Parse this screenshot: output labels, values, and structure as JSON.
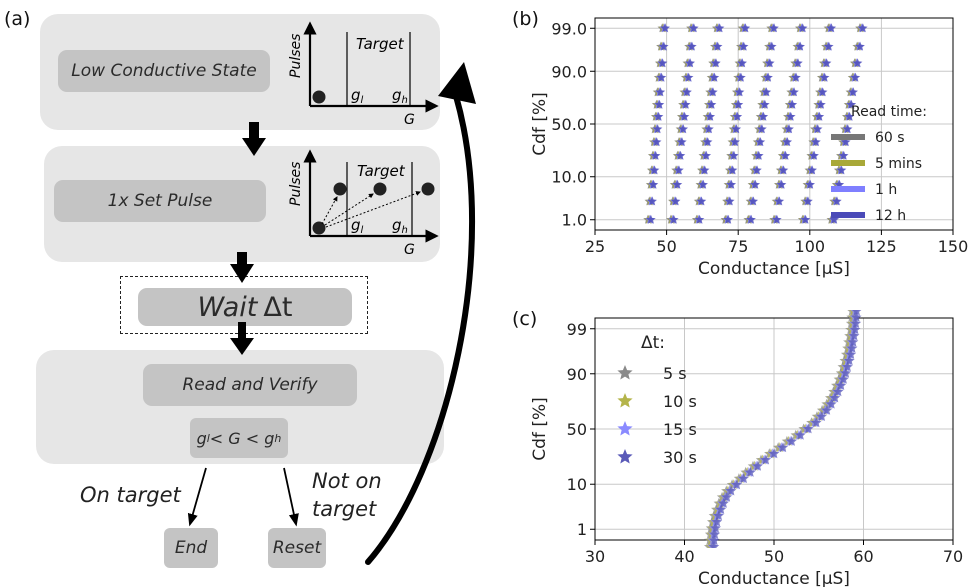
{
  "panel_a": {
    "letter": "(a)",
    "step1": "Low Conductive State",
    "step2": "1x Set Pulse",
    "wait_prefix": "Wait ",
    "wait_var": "Δt",
    "step3": "Read and Verify",
    "condition": "g",
    "condition_lt1": "< G < g",
    "on_target": "On target",
    "not_on_target_1": "Not on",
    "not_on_target_2": "target",
    "end": "End",
    "reset": "Reset",
    "inset": {
      "y_axis": "Pulses",
      "x_axis": "G",
      "target": "Target",
      "g_low": "g",
      "g_low_sub": "l",
      "g_high": "g",
      "g_high_sub": "h"
    }
  },
  "panel_b": {
    "letter": "(b)"
  },
  "panel_c": {
    "letter": "(c)"
  },
  "chart_data": [
    {
      "type": "scatter",
      "panel": "b",
      "xlabel": "Conductance [µS]",
      "ylabel": "Cdf [%]",
      "xlim": [
        25,
        150
      ],
      "x_ticks": [
        "25",
        "50",
        "75",
        "100",
        "125",
        "150"
      ],
      "y_scale": "probit",
      "y_ticks": [
        "1.0",
        "10.0",
        "50.0",
        "90.0",
        "99.0"
      ],
      "y_tick_values": [
        1,
        10,
        50,
        90,
        99
      ],
      "grid": true,
      "legend_title": "Read time:",
      "legend_placement": "right",
      "colors": [
        "#777777",
        "#a8a838",
        "#7f7fff",
        "#4a4ab8"
      ],
      "series": [
        {
          "name": "60 s"
        },
        {
          "name": "5 mins"
        },
        {
          "name": "1 h"
        },
        {
          "name": "12 h"
        }
      ],
      "distributions": [
        {
          "x_low": 44,
          "x_high": 49
        },
        {
          "x_low": 52,
          "x_high": 59
        },
        {
          "x_low": 61,
          "x_high": 68
        },
        {
          "x_low": 71,
          "x_high": 77
        },
        {
          "x_low": 79,
          "x_high": 87
        },
        {
          "x_low": 88,
          "x_high": 97
        },
        {
          "x_low": 98,
          "x_high": 107
        },
        {
          "x_low": 108,
          "x_high": 118
        }
      ]
    },
    {
      "type": "scatter",
      "panel": "c",
      "xlabel": "Conductance [µS]",
      "ylabel": "Cdf [%]",
      "xlim": [
        30,
        70
      ],
      "x_ticks": [
        "30",
        "40",
        "50",
        "60",
        "70"
      ],
      "y_scale": "probit",
      "y_ticks": [
        "1",
        "10",
        "50",
        "90",
        "99"
      ],
      "y_tick_values": [
        1,
        10,
        50,
        90,
        99
      ],
      "grid": true,
      "legend_title": "Δt:",
      "legend_placement": "upper-left",
      "colors": [
        "#8a8a8a",
        "#b4b44a",
        "#8a8aff",
        "#5a5ab8"
      ],
      "series": [
        {
          "name": "5 s"
        },
        {
          "name": "10 s"
        },
        {
          "name": "15 s"
        },
        {
          "name": "30 s"
        }
      ],
      "curve": [
        {
          "x": 43.0,
          "cdf": 0.2
        },
        {
          "x": 43.2,
          "cdf": 1
        },
        {
          "x": 43.8,
          "cdf": 3
        },
        {
          "x": 44.8,
          "cdf": 7
        },
        {
          "x": 46.5,
          "cdf": 13
        },
        {
          "x": 48.5,
          "cdf": 22
        },
        {
          "x": 50.5,
          "cdf": 32
        },
        {
          "x": 52.5,
          "cdf": 43
        },
        {
          "x": 54.5,
          "cdf": 56
        },
        {
          "x": 56.0,
          "cdf": 70
        },
        {
          "x": 57.2,
          "cdf": 84
        },
        {
          "x": 58.0,
          "cdf": 93
        },
        {
          "x": 58.6,
          "cdf": 98
        },
        {
          "x": 59.0,
          "cdf": 99.8
        }
      ]
    }
  ]
}
